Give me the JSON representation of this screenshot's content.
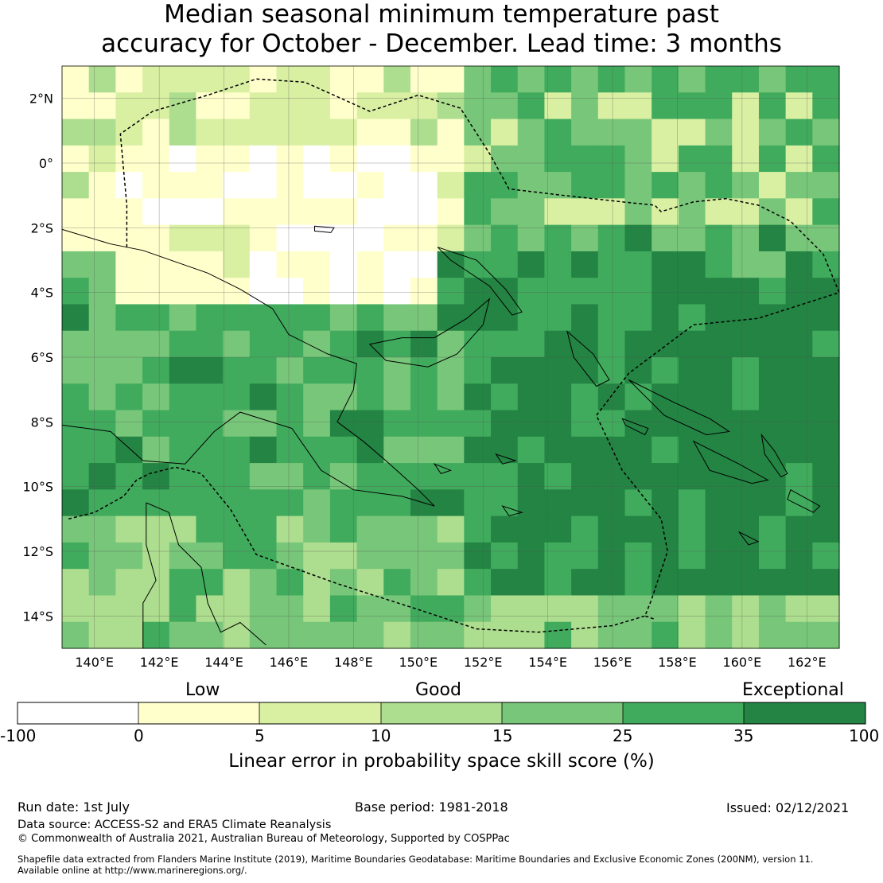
{
  "title": {
    "line1": "Median seasonal minimum temperature past",
    "line2": "accuracy for October - December. Lead time: 3 months"
  },
  "map": {
    "lon_labels": [
      "140°E",
      "142°E",
      "144°E",
      "146°E",
      "148°E",
      "150°E",
      "152°E",
      "154°E",
      "156°E",
      "158°E",
      "160°E",
      "162°E"
    ],
    "lat_labels": [
      "2°N",
      "0°",
      "2°S",
      "4°S",
      "6°S",
      "8°S",
      "10°S",
      "12°S",
      "14°S"
    ],
    "extent": {
      "lon_min": 139.0,
      "lon_max": 163.0,
      "lat_min": -15.0,
      "lat_max": 3.0
    }
  },
  "colorbar": {
    "categories": [
      "Low",
      "Good",
      "Exceptional"
    ],
    "bounds": [
      "-100",
      "0",
      "5",
      "10",
      "15",
      "25",
      "35",
      "100"
    ],
    "colors": [
      "#ffffff",
      "#ffffcc",
      "#d9f0a3",
      "#addd8e",
      "#78c679",
      "#41ab5d",
      "#238443"
    ],
    "label": "Linear error in probability space skill score (%)"
  },
  "footer": {
    "run_date": "Run date: 1st July",
    "base_period": "Base period: 1981-2018",
    "issued": "Issued: 02/12/2021",
    "data_source": "Data source: ACCESS-S2 and ERA5 Climate Reanalysis",
    "copyright": "© Commonwealth of Australia 2021, Australian Bureau of Meteorology, Supported by COSPPac",
    "shapefile_line1": "Shapefile data extracted from Flanders Marine Institute (2019), Maritime Boundaries Geodatabase: Maritime Boundaries and Exclusive Economic Zones (200NM), version 11.",
    "shapefile_line2": "Available online at http://www.marineregions.org/."
  }
}
